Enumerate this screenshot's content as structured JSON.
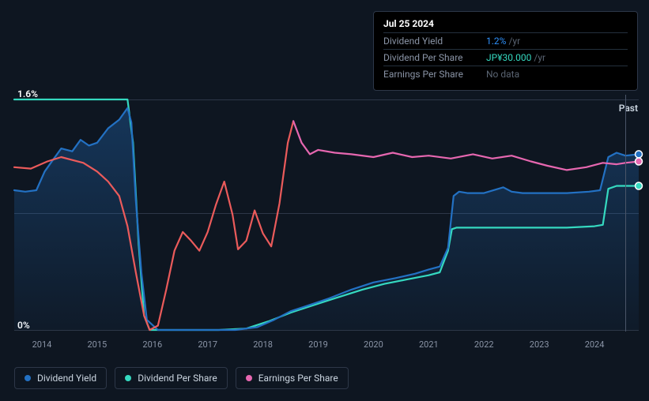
{
  "chart": {
    "type": "line",
    "background_color": "#0e1621",
    "grid_color": "#2d3748",
    "ylim": [
      0,
      1.6
    ],
    "ylabels": [
      {
        "v": 0,
        "text": "0%"
      },
      {
        "v": 1.6,
        "text": "1.6%"
      }
    ],
    "grid_y": [
      0.8
    ],
    "xlim": [
      2013.5,
      2024.8
    ],
    "xticks": [
      2014,
      2015,
      2016,
      2017,
      2018,
      2019,
      2020,
      2021,
      2022,
      2023,
      2024
    ],
    "past_label": "Past",
    "hover_x": 2024.56,
    "area_fill": {
      "color": "#2371c3",
      "opacity": 0.25,
      "series": "dividend_yield"
    },
    "series": {
      "dividend_yield": {
        "color": "#2371c3",
        "width": 2.2,
        "points": [
          [
            2013.5,
            0.97
          ],
          [
            2013.7,
            0.96
          ],
          [
            2013.9,
            0.97
          ],
          [
            2014.05,
            1.1
          ],
          [
            2014.2,
            1.18
          ],
          [
            2014.35,
            1.26
          ],
          [
            2014.55,
            1.24
          ],
          [
            2014.7,
            1.32
          ],
          [
            2014.85,
            1.28
          ],
          [
            2015.0,
            1.3
          ],
          [
            2015.2,
            1.4
          ],
          [
            2015.4,
            1.46
          ],
          [
            2015.55,
            1.54
          ],
          [
            2015.62,
            1.44
          ],
          [
            2015.7,
            0.9
          ],
          [
            2015.8,
            0.4
          ],
          [
            2015.9,
            0.07
          ],
          [
            2016.1,
            0.0
          ],
          [
            2016.5,
            0.0
          ],
          [
            2017.0,
            0.0
          ],
          [
            2017.5,
            0.0
          ],
          [
            2017.9,
            0.02
          ],
          [
            2018.2,
            0.07
          ],
          [
            2018.5,
            0.13
          ],
          [
            2018.9,
            0.18
          ],
          [
            2019.2,
            0.22
          ],
          [
            2019.6,
            0.28
          ],
          [
            2020.0,
            0.33
          ],
          [
            2020.4,
            0.36
          ],
          [
            2020.75,
            0.39
          ],
          [
            2021.0,
            0.42
          ],
          [
            2021.2,
            0.44
          ],
          [
            2021.35,
            0.57
          ],
          [
            2021.45,
            0.93
          ],
          [
            2021.55,
            0.96
          ],
          [
            2021.7,
            0.95
          ],
          [
            2022.0,
            0.95
          ],
          [
            2022.35,
            0.99
          ],
          [
            2022.5,
            0.96
          ],
          [
            2022.7,
            0.95
          ],
          [
            2023.0,
            0.95
          ],
          [
            2023.5,
            0.95
          ],
          [
            2023.9,
            0.96
          ],
          [
            2024.1,
            0.97
          ],
          [
            2024.25,
            1.2
          ],
          [
            2024.4,
            1.23
          ],
          [
            2024.56,
            1.21
          ],
          [
            2024.8,
            1.22
          ]
        ]
      },
      "dividend_per_share": {
        "color": "#35d9c0",
        "width": 2.2,
        "points": [
          [
            2013.5,
            1.6
          ],
          [
            2014.0,
            1.6
          ],
          [
            2014.5,
            1.6
          ],
          [
            2015.0,
            1.6
          ],
          [
            2015.4,
            1.6
          ],
          [
            2015.55,
            1.6
          ],
          [
            2015.65,
            1.3
          ],
          [
            2015.75,
            0.6
          ],
          [
            2015.85,
            0.1
          ],
          [
            2015.95,
            0.0
          ],
          [
            2016.2,
            0.0
          ],
          [
            2016.7,
            0.0
          ],
          [
            2017.2,
            0.0
          ],
          [
            2017.7,
            0.01
          ],
          [
            2018.1,
            0.06
          ],
          [
            2018.5,
            0.12
          ],
          [
            2018.9,
            0.17
          ],
          [
            2019.3,
            0.22
          ],
          [
            2019.8,
            0.28
          ],
          [
            2020.2,
            0.32
          ],
          [
            2020.6,
            0.35
          ],
          [
            2021.0,
            0.38
          ],
          [
            2021.2,
            0.4
          ],
          [
            2021.35,
            0.55
          ],
          [
            2021.42,
            0.7
          ],
          [
            2021.5,
            0.71
          ],
          [
            2022.0,
            0.71
          ],
          [
            2022.5,
            0.71
          ],
          [
            2023.0,
            0.71
          ],
          [
            2023.5,
            0.71
          ],
          [
            2024.0,
            0.72
          ],
          [
            2024.15,
            0.73
          ],
          [
            2024.25,
            0.98
          ],
          [
            2024.4,
            1.0
          ],
          [
            2024.56,
            1.0
          ],
          [
            2024.8,
            1.0
          ]
        ]
      },
      "earnings_per_share": {
        "segments": [
          {
            "color": "#eb5b5b",
            "width": 2.2,
            "points": [
              [
                2013.5,
                1.13
              ],
              [
                2013.8,
                1.12
              ],
              [
                2014.1,
                1.17
              ],
              [
                2014.35,
                1.2
              ],
              [
                2014.55,
                1.18
              ],
              [
                2014.75,
                1.16
              ],
              [
                2015.0,
                1.1
              ],
              [
                2015.2,
                1.03
              ],
              [
                2015.4,
                0.93
              ],
              [
                2015.55,
                0.72
              ],
              [
                2015.7,
                0.4
              ],
              [
                2015.85,
                0.1
              ],
              [
                2015.95,
                0.0
              ],
              [
                2016.1,
                0.03
              ],
              [
                2016.25,
                0.28
              ],
              [
                2016.4,
                0.55
              ],
              [
                2016.55,
                0.68
              ],
              [
                2016.7,
                0.62
              ],
              [
                2016.85,
                0.55
              ],
              [
                2017.0,
                0.68
              ],
              [
                2017.15,
                0.87
              ],
              [
                2017.3,
                1.03
              ],
              [
                2017.45,
                0.8
              ],
              [
                2017.55,
                0.56
              ],
              [
                2017.7,
                0.62
              ],
              [
                2017.85,
                0.83
              ],
              [
                2018.0,
                0.67
              ],
              [
                2018.15,
                0.58
              ],
              [
                2018.3,
                0.88
              ],
              [
                2018.45,
                1.3
              ],
              [
                2018.55,
                1.45
              ]
            ]
          },
          {
            "color": "#e667b0",
            "width": 2.2,
            "points": [
              [
                2018.55,
                1.45
              ],
              [
                2018.7,
                1.3
              ],
              [
                2018.85,
                1.22
              ],
              [
                2019.0,
                1.25
              ],
              [
                2019.3,
                1.23
              ],
              [
                2019.6,
                1.22
              ],
              [
                2020.0,
                1.2
              ],
              [
                2020.35,
                1.23
              ],
              [
                2020.7,
                1.2
              ],
              [
                2021.0,
                1.21
              ],
              [
                2021.4,
                1.19
              ],
              [
                2021.8,
                1.22
              ],
              [
                2022.15,
                1.19
              ],
              [
                2022.5,
                1.21
              ],
              [
                2022.85,
                1.17
              ],
              [
                2023.15,
                1.14
              ],
              [
                2023.5,
                1.11
              ],
              [
                2023.85,
                1.13
              ],
              [
                2024.15,
                1.16
              ],
              [
                2024.4,
                1.15
              ],
              [
                2024.56,
                1.16
              ],
              [
                2024.8,
                1.17
              ]
            ]
          }
        ]
      }
    },
    "end_markers": [
      {
        "series": "dividend_yield",
        "color": "#2371c3"
      },
      {
        "series": "dividend_per_share",
        "color": "#35d9c0"
      },
      {
        "series": "earnings_per_share",
        "color": "#e667b0"
      }
    ]
  },
  "tooltip": {
    "date": "Jul 25 2024",
    "rows": [
      {
        "label": "Dividend Yield",
        "value": "1.2%",
        "value_color": "#2e90fa",
        "unit": "/yr"
      },
      {
        "label": "Dividend Per Share",
        "value": "JP¥30.000",
        "value_color": "#35d9c0",
        "unit": "/yr"
      },
      {
        "label": "Earnings Per Share",
        "value": "No data",
        "value_color": "#5a6472",
        "unit": ""
      }
    ]
  },
  "legend": [
    {
      "label": "Dividend Yield",
      "color": "#2371c3"
    },
    {
      "label": "Dividend Per Share",
      "color": "#35d9c0"
    },
    {
      "label": "Earnings Per Share",
      "color": "#e667b0"
    }
  ]
}
